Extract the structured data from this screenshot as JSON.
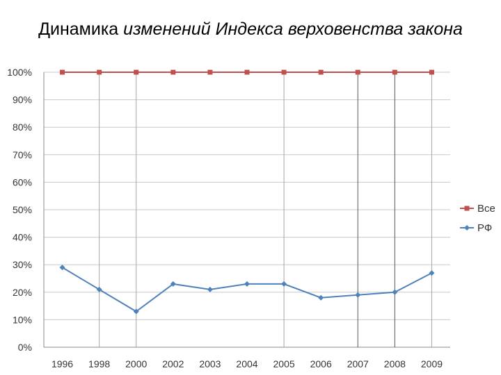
{
  "slide": {
    "title_plain": "Динамика ",
    "title_italic": "изменений Индекса верховенства закона"
  },
  "chart_data": {
    "type": "line",
    "categories": [
      "1996",
      "1998",
      "2000",
      "2002",
      "2003",
      "2004",
      "2005",
      "2006",
      "2007",
      "2008",
      "2009"
    ],
    "series": [
      {
        "name": "Все",
        "values": [
          100,
          100,
          100,
          100,
          100,
          100,
          100,
          100,
          100,
          100,
          100
        ],
        "color": "#c0504d",
        "marker": "square"
      },
      {
        "name": "РФ",
        "values": [
          29,
          21,
          13,
          23,
          21,
          23,
          23,
          18,
          19,
          20,
          27
        ],
        "color": "#4f81bd",
        "marker": "diamond"
      }
    ],
    "y_ticks": [
      "0%",
      "10%",
      "20%",
      "30%",
      "40%",
      "50%",
      "60%",
      "70%",
      "80%",
      "90%",
      "100%"
    ],
    "ylim": [
      0,
      100
    ],
    "y_unit": "%",
    "grid": true,
    "legend_position": "right",
    "vertical_lines_at": [
      "1998",
      "2000",
      "2005",
      "2007",
      "2008",
      "2009"
    ],
    "dark_vertical_lines_at": [
      "2007",
      "2008"
    ]
  }
}
